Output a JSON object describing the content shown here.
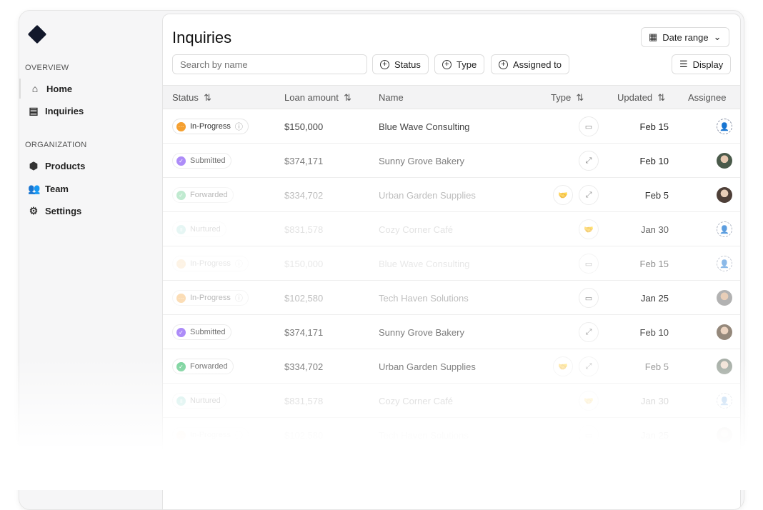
{
  "sidebar": {
    "sections": [
      {
        "label": "OVERVIEW",
        "items": [
          {
            "label": "Home",
            "icon": "home-icon"
          },
          {
            "label": "Inquiries",
            "icon": "document-dollar-icon"
          }
        ]
      },
      {
        "label": "ORGANIZATION",
        "items": [
          {
            "label": "Products",
            "icon": "box-icon"
          },
          {
            "label": "Team",
            "icon": "users-icon"
          },
          {
            "label": "Settings",
            "icon": "gear-icon"
          }
        ]
      }
    ]
  },
  "header": {
    "title": "Inquiries",
    "date_range": "Date range",
    "search_placeholder": "Search by name",
    "filters": [
      "Status",
      "Type",
      "Assigned to"
    ],
    "display": "Display"
  },
  "table": {
    "columns": [
      "Status",
      "Loan amount",
      "Name",
      "Type",
      "Updated",
      "Assignee"
    ],
    "rows": [
      {
        "status": "In-Progress",
        "amount": "$150,000",
        "name": "Blue Wave Consulting",
        "types": [
          "cash"
        ],
        "updated": "Feb 15",
        "assignee": "unassigned"
      },
      {
        "status": "Submitted",
        "amount": "$374,171",
        "name": "Sunny Grove Bakery",
        "types": [
          "expand"
        ],
        "updated": "Feb 10",
        "assignee": "avatar"
      },
      {
        "status": "Forwarded",
        "amount": "$334,702",
        "name": "Urban Garden Supplies",
        "types": [
          "handshake",
          "expand"
        ],
        "updated": "Feb 5",
        "assignee": "avatar"
      },
      {
        "status": "Nurtured",
        "amount": "$831,578",
        "name": "Cozy Corner Café",
        "types": [
          "handshake"
        ],
        "updated": "Jan 30",
        "assignee": "unassigned"
      },
      {
        "status": "In-Progress",
        "amount": "$150,000",
        "name": "Blue Wave Consulting",
        "types": [
          "cash"
        ],
        "updated": "Feb 15",
        "assignee": "unassigned"
      },
      {
        "status": "In-Progress",
        "amount": "$102,580",
        "name": "Tech Haven Solutions",
        "types": [
          "cash"
        ],
        "updated": "Jan 25",
        "assignee": "avatar"
      },
      {
        "status": "Submitted",
        "amount": "$374,171",
        "name": "Sunny Grove Bakery",
        "types": [
          "expand"
        ],
        "updated": "Feb 10",
        "assignee": "avatar"
      },
      {
        "status": "Forwarded",
        "amount": "$334,702",
        "name": "Urban Garden Supplies",
        "types": [
          "handshake",
          "expand"
        ],
        "updated": "Feb 5",
        "assignee": "avatar"
      },
      {
        "status": "Nurtured",
        "amount": "$831,578",
        "name": "Cozy Corner Café",
        "types": [
          "handshake"
        ],
        "updated": "Jan 30",
        "assignee": "unassigned"
      },
      {
        "status": "In-Progress",
        "amount": "$102,580",
        "name": "Tech Haven Solutions",
        "types": [
          "cash"
        ],
        "updated": "Jan 25",
        "assignee": "avatar"
      }
    ]
  },
  "status_colors": {
    "In-Progress": "#f5a030",
    "Submitted": "#8b5cf6",
    "Forwarded": "#4cc47a",
    "Nurtured": "#5cc8b8"
  }
}
